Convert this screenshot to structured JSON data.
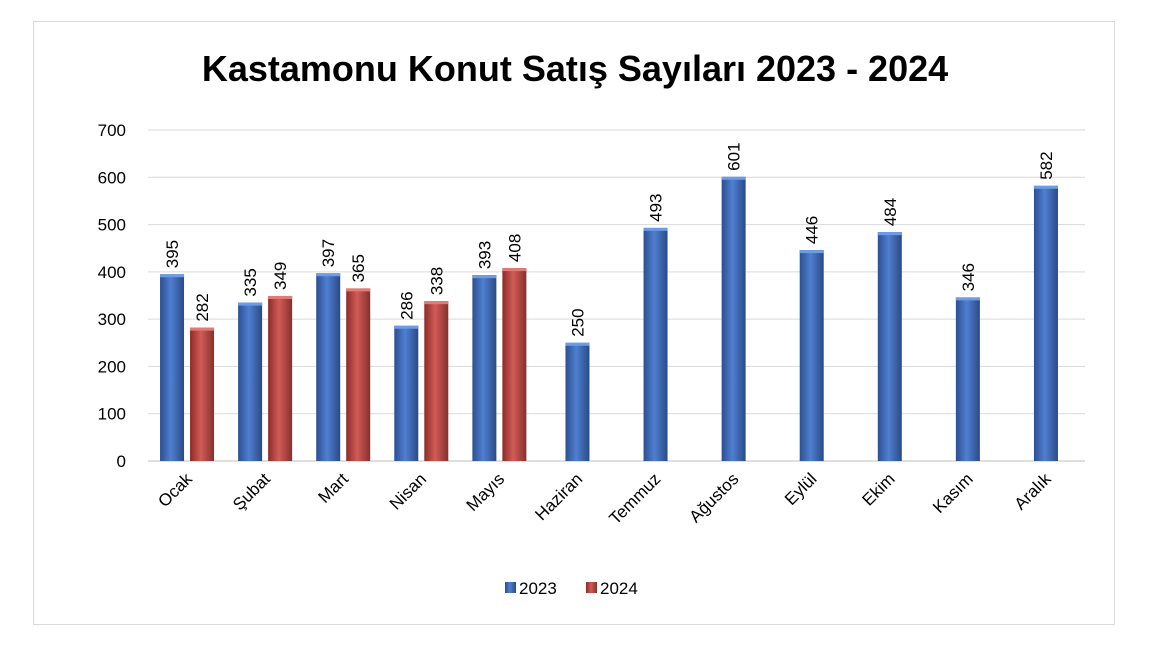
{
  "chart_data": {
    "type": "bar",
    "title": "Kastamonu Konut Satış Sayıları 2023 - 2024",
    "categories": [
      "Ocak",
      "Şubat",
      "Mart",
      "Nisan",
      "Mayıs",
      "Haziran",
      "Temmuz",
      "Ağustos",
      "Eylül",
      "Ekim",
      "Kasım",
      "Aralık"
    ],
    "series": [
      {
        "name": "2023",
        "values": [
          395,
          335,
          397,
          286,
          393,
          250,
          493,
          601,
          446,
          484,
          346,
          582
        ]
      },
      {
        "name": "2024",
        "values": [
          282,
          349,
          365,
          338,
          408,
          null,
          null,
          null,
          null,
          null,
          null,
          null
        ]
      }
    ],
    "ylim": [
      0,
      700
    ],
    "yticks": [
      0,
      100,
      200,
      300,
      400,
      500,
      600,
      700
    ],
    "grid": true,
    "legend": "bottom",
    "colors": {
      "2023": "#4472c4",
      "2024": "#c0504d"
    }
  }
}
